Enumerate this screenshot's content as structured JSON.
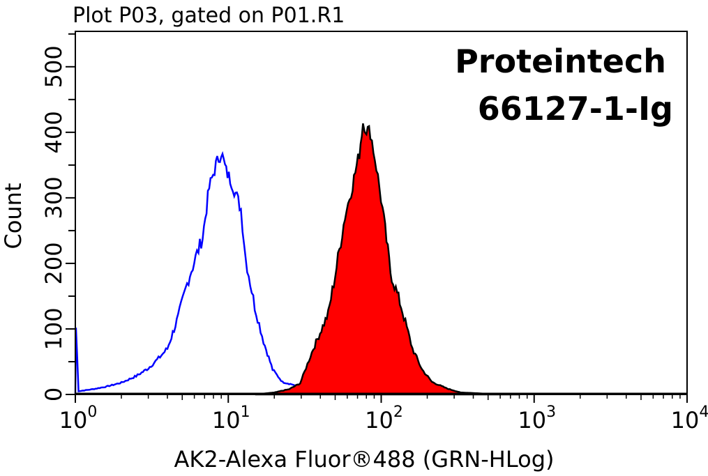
{
  "chart_data": {
    "type": "area",
    "title": "Plot P03, gated on P01.R1",
    "annotation": [
      "Proteintech",
      "66127-1-Ig"
    ],
    "xlabel": "AK2-Alexa Fluor®488 (GRN-HLog)",
    "ylabel": "Count",
    "xscale": "log",
    "xlim": [
      1,
      10000
    ],
    "ylim": [
      0,
      554
    ],
    "xticks": [
      {
        "base": "10",
        "exp": "0"
      },
      {
        "base": "10",
        "exp": "1"
      },
      {
        "base": "10",
        "exp": "2"
      },
      {
        "base": "10",
        "exp": "3"
      },
      {
        "base": "10",
        "exp": "4"
      }
    ],
    "xtick_values": [
      1,
      10,
      100,
      1000,
      10000
    ],
    "yticks": [
      "0",
      "100",
      "200",
      "300",
      "400",
      "500"
    ],
    "ytick_values": [
      0,
      100,
      200,
      300,
      400,
      500
    ],
    "grid": false,
    "series": [
      {
        "style": "line",
        "color": "#0000ff",
        "x": [
          1,
          1.01,
          1.05,
          1.3,
          1.6,
          2,
          2.5,
          3,
          3.5,
          4,
          4.7,
          5.5,
          6.8,
          7.5,
          8.3,
          9,
          9.7,
          10.5,
          12.1,
          13,
          14.9,
          17,
          19.5,
          22.6,
          26.5,
          32,
          40,
          60
        ],
        "y": [
          0,
          102,
          5,
          8,
          12,
          18,
          28,
          40,
          55,
          70,
          118,
          177,
          240,
          315,
          350,
          370,
          340,
          325,
          283,
          208,
          134,
          81,
          38,
          19,
          15,
          6,
          2,
          0
        ]
      },
      {
        "style": "filled",
        "color": "#ff0000",
        "edge": "#000000",
        "x": [
          15,
          20,
          25,
          29.5,
          36,
          45,
          50,
          58,
          65,
          72,
          76,
          80,
          85,
          93,
          102,
          115,
          135,
          160,
          185,
          215,
          270,
          330,
          500,
          800
        ],
        "y": [
          0,
          3,
          8,
          17,
          70,
          123,
          182,
          272,
          320,
          368,
          416,
          405,
          400,
          347,
          283,
          187,
          134,
          70,
          38,
          19,
          9,
          3,
          1,
          0
        ]
      }
    ]
  }
}
